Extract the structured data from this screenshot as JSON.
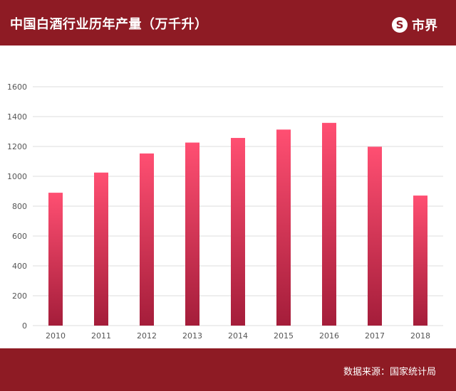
{
  "header": {
    "title": "中国白酒行业历年产量（万千升）",
    "logo_mark": "S",
    "logo_text": "市界"
  },
  "footer": {
    "source": "数据来源：国家统计局"
  },
  "colors": {
    "brand": "#8e1b24",
    "bar_top": "#ff4f72",
    "bar_bottom": "#a41d3a",
    "grid": "#dddddd"
  },
  "chart_data": {
    "type": "bar",
    "title": "中国白酒行业历年产量（万千升）",
    "xlabel": "",
    "ylabel": "",
    "categories": [
      "2010",
      "2011",
      "2012",
      "2013",
      "2014",
      "2015",
      "2016",
      "2017",
      "2018"
    ],
    "values": [
      890,
      1025,
      1153,
      1226,
      1257,
      1313,
      1358,
      1198,
      871
    ],
    "ylim": [
      0,
      1600
    ],
    "yticks": [
      0,
      200,
      400,
      600,
      800,
      1000,
      1200,
      1400,
      1600
    ],
    "grid": true,
    "legend": "none"
  }
}
